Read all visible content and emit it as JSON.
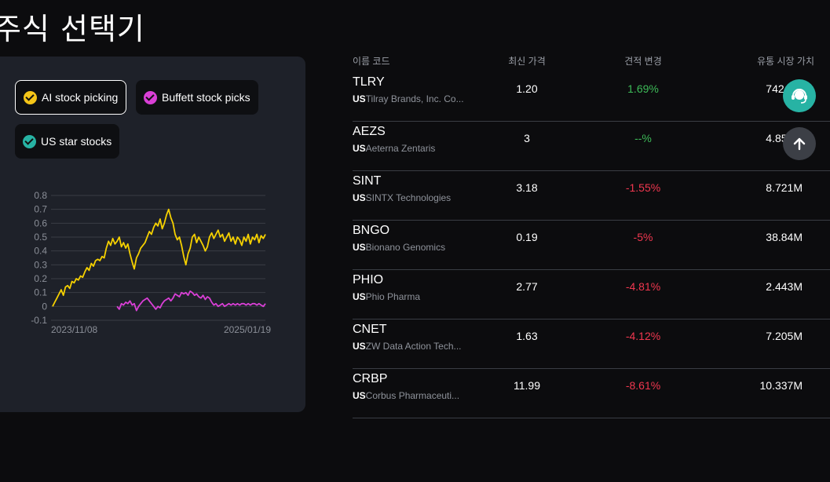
{
  "page_title": "주식 선택기",
  "chips": [
    {
      "label": "AI stock picking",
      "color": "#f5c518",
      "active": true
    },
    {
      "label": "Buffett stock picks",
      "color": "#d93fd6",
      "active": false
    },
    {
      "label": "US star stocks",
      "color": "#27b3a4",
      "active": false
    }
  ],
  "chart_data": {
    "type": "line",
    "x_range": [
      "2023/11/08",
      "2025/01/19"
    ],
    "y_ticks": [
      "0.8",
      "0.7",
      "0.6",
      "0.5",
      "0.4",
      "0.3",
      "0.2",
      "0.1",
      "0",
      "-0.1"
    ],
    "ylim": [
      -0.1,
      0.8
    ],
    "x_labels": [
      "2023/11/08",
      "2025/01/19"
    ],
    "series": [
      {
        "color": "#f5d000",
        "values": [
          0.0,
          0.03,
          0.06,
          0.09,
          0.12,
          0.08,
          0.14,
          0.15,
          0.13,
          0.18,
          0.17,
          0.2,
          0.19,
          0.22,
          0.21,
          0.25,
          0.28,
          0.26,
          0.31,
          0.29,
          0.33,
          0.34,
          0.33,
          0.36,
          0.35,
          0.42,
          0.47,
          0.44,
          0.49,
          0.45,
          0.47,
          0.5,
          0.43,
          0.46,
          0.42,
          0.45,
          0.38,
          0.32,
          0.27,
          0.35,
          0.38,
          0.42,
          0.44,
          0.46,
          0.5,
          0.54,
          0.52,
          0.57,
          0.6,
          0.58,
          0.63,
          0.56,
          0.6,
          0.66,
          0.7,
          0.64,
          0.6,
          0.52,
          0.48,
          0.5,
          0.44,
          0.36,
          0.3,
          0.38,
          0.42,
          0.5,
          0.52,
          0.46,
          0.5,
          0.47,
          0.44,
          0.4,
          0.43,
          0.5,
          0.53,
          0.49,
          0.52,
          0.55,
          0.5,
          0.52,
          0.47,
          0.5,
          0.53,
          0.47,
          0.5,
          0.45,
          0.5,
          0.48,
          0.44,
          0.5,
          0.47,
          0.52,
          0.45,
          0.5,
          0.48,
          0.52,
          0.46,
          0.51,
          0.49,
          0.52
        ]
      },
      {
        "color": "#d93fd6",
        "start_index": 30,
        "values": [
          0.0,
          -0.02,
          0.02,
          0.01,
          0.03,
          0.02,
          0.04,
          0.01,
          0.02,
          -0.03,
          0.0,
          0.02,
          0.04,
          0.05,
          0.06,
          0.04,
          0.02,
          0.0,
          -0.02,
          0.0,
          -0.01,
          0.02,
          0.04,
          0.05,
          0.06,
          0.04,
          0.06,
          0.09,
          0.08,
          0.07,
          0.1,
          0.09,
          0.1,
          0.08,
          0.11,
          0.1,
          0.08,
          0.09,
          0.07,
          0.06,
          0.08,
          0.05,
          0.07,
          0.06,
          0.03,
          0.01,
          0.02,
          0.0,
          0.01,
          0.02,
          0.0,
          0.01,
          0.02,
          0.01,
          0.02,
          0.01,
          0.02,
          0.01,
          0.02,
          0.02,
          0.01,
          0.02,
          0.01,
          0.02,
          0.02,
          0.01,
          0.02,
          0.01,
          0.0,
          0.02
        ]
      }
    ]
  },
  "table": {
    "headers": {
      "name": "이름 코드",
      "price": "최신 가격",
      "change": "견적 변경",
      "mcap": "유통 시장 가치"
    },
    "rows": [
      {
        "ticker": "TLRY",
        "market": "US",
        "company": "Tilray Brands, Inc. Co...",
        "price": "1.20",
        "change": "1.69%",
        "dir": "up",
        "mcap": "742.7..."
      },
      {
        "ticker": "AEZS",
        "market": "US",
        "company": "Aeterna Zentaris",
        "price": "3",
        "change": "--%",
        "dir": "neutral",
        "mcap": "4.856M"
      },
      {
        "ticker": "SINT",
        "market": "US",
        "company": "SINTX Technologies",
        "price": "3.18",
        "change": "-1.55%",
        "dir": "down",
        "mcap": "8.721M"
      },
      {
        "ticker": "BNGO",
        "market": "US",
        "company": "Bionano Genomics",
        "price": "0.19",
        "change": "-5%",
        "dir": "down",
        "mcap": "38.84M"
      },
      {
        "ticker": "PHIO",
        "market": "US",
        "company": "Phio Pharma",
        "price": "2.77",
        "change": "-4.81%",
        "dir": "down",
        "mcap": "2.443M"
      },
      {
        "ticker": "CNET",
        "market": "US",
        "company": "ZW Data Action Tech...",
        "price": "1.63",
        "change": "-4.12%",
        "dir": "down",
        "mcap": "7.205M"
      },
      {
        "ticker": "CRBP",
        "market": "US",
        "company": "Corbus Pharmaceuti...",
        "price": "11.99",
        "change": "-8.61%",
        "dir": "down",
        "mcap": "10.337M"
      }
    ]
  },
  "icons": {
    "support": "headset-support-icon",
    "scroll_top": "arrow-up-icon"
  }
}
